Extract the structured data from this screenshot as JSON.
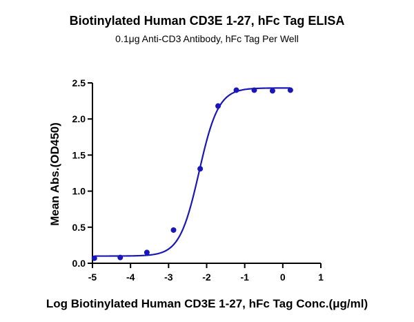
{
  "chart_data": {
    "type": "scatter",
    "title": "Biotinylated Human CD3E 1-27, hFc Tag ELISA",
    "subtitle": "0.1μg Anti-CD3 Antibody, hFc Tag Per Well",
    "xlabel": "Log Biotinylated Human CD3E 1-27, hFc Tag Conc.(μg/ml)",
    "ylabel": "Mean Abs.(OD450)",
    "xlim": [
      -5,
      1
    ],
    "ylim": [
      0,
      2.5
    ],
    "x_ticks": [
      "-5",
      "-4",
      "-3",
      "-2",
      "-1",
      "0",
      "1"
    ],
    "y_ticks": [
      "0.0",
      "0.5",
      "1.0",
      "1.5",
      "2.0",
      "2.5"
    ],
    "grid": false,
    "legend": "none",
    "points": {
      "x": [
        -4.95,
        -4.27,
        -3.57,
        -2.87,
        -2.17,
        -1.7,
        -1.22,
        -0.75,
        -0.27,
        0.2
      ],
      "y": [
        0.07,
        0.08,
        0.15,
        0.46,
        1.31,
        2.18,
        2.4,
        2.4,
        2.39,
        2.4
      ]
    },
    "fit_curve": {
      "model": "4PL",
      "bottom": 0.1,
      "top": 2.43,
      "log_ec50": -2.2,
      "hill": 1.7
    },
    "color": "#1a17b8"
  }
}
